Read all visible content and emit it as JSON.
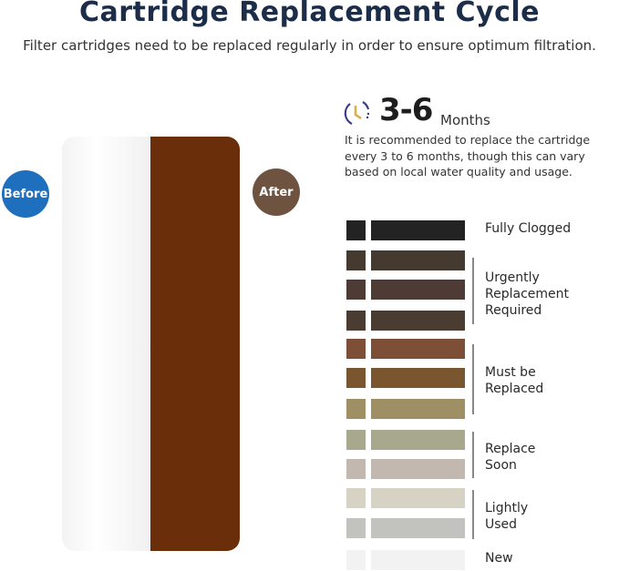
{
  "header": {
    "title": "Cartridge Replacement Cycle",
    "subtitle": "Filter cartridges need to be replaced regularly in order to ensure optimum filtration."
  },
  "cartridge": {
    "before_label": "Before",
    "after_label": "After",
    "before_color": "#1f6fbf",
    "after_color": "#6e5340",
    "used_color": "#6b2e0a"
  },
  "cycle": {
    "icon": "clock-cycle-icon",
    "range": "3-6",
    "unit": "Months",
    "description": "It is recommended to replace the cartridge every 3 to 6 months, though this can vary based on local water quality and usage."
  },
  "scale": {
    "swatches": [
      "#232323",
      "#453a30",
      "#4e3b36",
      "#4b3c31",
      "#7d4f37",
      "#7a5630",
      "#9e9064",
      "#a8a88c",
      "#c2b8b0",
      "#d6d2c4",
      "#c2c2be",
      "#f2f2f2"
    ],
    "groups": [
      {
        "label": "Fully Clogged"
      },
      {
        "label": "Urgently Replacement Required"
      },
      {
        "label": "Must be Replaced"
      },
      {
        "label": "Replace Soon"
      },
      {
        "label": "Lightly Used"
      },
      {
        "label": "New"
      }
    ]
  }
}
